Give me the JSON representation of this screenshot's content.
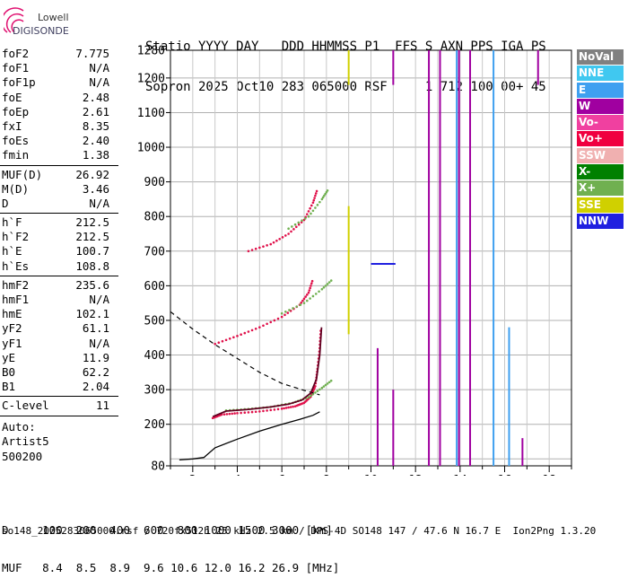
{
  "logo": {
    "line1": "Lowell",
    "line2": "DIGISONDE"
  },
  "header": {
    "line1": "Statio YYYY DAY   DDD HHMMSS P1  FFS S AXN PPS IGA PS",
    "line2": "Sopron 2025 Oct10 283 065000 RSF     1 712 100 00+ 45"
  },
  "params": {
    "group1": [
      {
        "k": "foF2",
        "v": "7.775"
      },
      {
        "k": "foF1",
        "v": "N/A"
      },
      {
        "k": "foF1p",
        "v": "N/A"
      },
      {
        "k": "foE",
        "v": "2.48"
      },
      {
        "k": "foEp",
        "v": "2.61"
      },
      {
        "k": "fxI",
        "v": "8.35"
      },
      {
        "k": "foEs",
        "v": "2.40"
      },
      {
        "k": "fmin",
        "v": "1.38"
      }
    ],
    "group2": [
      {
        "k": "MUF(D)",
        "v": "26.92"
      },
      {
        "k": "M(D)",
        "v": "3.46"
      },
      {
        "k": "D",
        "v": "N/A"
      }
    ],
    "group3": [
      {
        "k": "h`F",
        "v": "212.5"
      },
      {
        "k": "h`F2",
        "v": "212.5"
      },
      {
        "k": "h`E",
        "v": "100.7"
      },
      {
        "k": "h`Es",
        "v": "108.8"
      }
    ],
    "group4": [
      {
        "k": "hmF2",
        "v": "235.6"
      },
      {
        "k": "hmF1",
        "v": "N/A"
      },
      {
        "k": "hmE",
        "v": "102.1"
      },
      {
        "k": "yF2",
        "v": "61.1"
      },
      {
        "k": "yF1",
        "v": "N/A"
      },
      {
        "k": "yE",
        "v": "11.9"
      },
      {
        "k": "B0",
        "v": "62.2"
      },
      {
        "k": "B1",
        "v": "2.04"
      }
    ],
    "group5": [
      {
        "k": "C-level",
        "v": "11"
      }
    ],
    "auto": [
      "Auto:",
      "Artist5",
      "500200"
    ]
  },
  "legend": [
    {
      "label": "NoVal",
      "color": "#808080"
    },
    {
      "label": "NNE",
      "color": "#40c8f0"
    },
    {
      "label": "E",
      "color": "#3fa0f0"
    },
    {
      "label": "W",
      "color": "#a000a0"
    },
    {
      "label": "Vo-",
      "color": "#f040a0"
    },
    {
      "label": "Vo+",
      "color": "#f00040"
    },
    {
      "label": "SSW",
      "color": "#f0b0b0"
    },
    {
      "label": "X-",
      "color": "#008000"
    },
    {
      "label": "X+",
      "color": "#70b050"
    },
    {
      "label": "SSE",
      "color": "#d0d000"
    },
    {
      "label": "NNW",
      "color": "#2020e0"
    }
  ],
  "chart_data": {
    "type": "scatter",
    "xlim": [
      1,
      19
    ],
    "ylim": [
      80,
      1280
    ],
    "xticks": [
      2,
      4,
      6,
      8,
      10,
      12,
      14,
      16,
      18
    ],
    "yticks": [
      80,
      200,
      300,
      400,
      500,
      600,
      700,
      800,
      900,
      1000,
      1100,
      1200,
      1280
    ],
    "grid": true,
    "series": [
      {
        "name": "Vo+",
        "color": "#e0104a",
        "points": [
          [
            2.9,
            218
          ],
          [
            3.3,
            228
          ],
          [
            4.0,
            232
          ],
          [
            5.0,
            237
          ],
          [
            6.0,
            245
          ],
          [
            6.6,
            252
          ],
          [
            7.0,
            262
          ],
          [
            7.3,
            280
          ],
          [
            7.5,
            310
          ],
          [
            7.6,
            360
          ],
          [
            7.7,
            420
          ],
          [
            7.75,
            480
          ]
        ]
      },
      {
        "name": "X+",
        "color": "#70b050",
        "points": [
          [
            3.5,
            240
          ],
          [
            4.5,
            244
          ],
          [
            5.5,
            250
          ],
          [
            6.5,
            262
          ],
          [
            7.2,
            278
          ],
          [
            7.8,
            305
          ],
          [
            8.3,
            330
          ]
        ]
      },
      {
        "name": "Vo+",
        "color": "#e0104a",
        "points": [
          [
            3.0,
            432
          ],
          [
            4.0,
            455
          ],
          [
            5.0,
            480
          ],
          [
            6.0,
            510
          ],
          [
            6.8,
            545
          ],
          [
            7.2,
            580
          ],
          [
            7.4,
            620
          ]
        ]
      },
      {
        "name": "X+",
        "color": "#70b050",
        "points": [
          [
            6.0,
            520
          ],
          [
            7.0,
            550
          ],
          [
            7.8,
            590
          ],
          [
            8.3,
            620
          ]
        ]
      },
      {
        "name": "Vo+",
        "color": "#e0104a",
        "points": [
          [
            4.5,
            700
          ],
          [
            5.5,
            720
          ],
          [
            6.3,
            750
          ],
          [
            7.0,
            790
          ],
          [
            7.4,
            840
          ],
          [
            7.6,
            880
          ]
        ]
      },
      {
        "name": "X+",
        "color": "#70b050",
        "points": [
          [
            6.3,
            765
          ],
          [
            7.2,
            800
          ],
          [
            7.8,
            850
          ],
          [
            8.1,
            880
          ]
        ]
      }
    ],
    "profile": {
      "name": "profile",
      "points": [
        [
          1.4,
          97
        ],
        [
          2.0,
          100
        ],
        [
          2.5,
          104
        ],
        [
          3.0,
          132
        ],
        [
          4.0,
          157
        ],
        [
          5.0,
          180
        ],
        [
          6.0,
          200
        ],
        [
          6.8,
          214
        ],
        [
          7.4,
          226
        ],
        [
          7.7,
          236
        ]
      ]
    },
    "trace": {
      "name": "trace",
      "points": [
        [
          2.9,
          222
        ],
        [
          3.5,
          238
        ],
        [
          4.5,
          243
        ],
        [
          5.5,
          250
        ],
        [
          6.3,
          258
        ],
        [
          6.9,
          270
        ],
        [
          7.3,
          290
        ],
        [
          7.55,
          330
        ],
        [
          7.7,
          400
        ],
        [
          7.78,
          480
        ]
      ]
    },
    "model": {
      "name": "model",
      "points": [
        [
          1.0,
          525
        ],
        [
          2.0,
          475
        ],
        [
          3.0,
          430
        ],
        [
          4.0,
          390
        ],
        [
          5.0,
          350
        ],
        [
          6.0,
          318
        ],
        [
          7.0,
          298
        ],
        [
          7.7,
          285
        ]
      ]
    },
    "verticals": [
      {
        "x": 9.0,
        "y1": 460,
        "y2": 830,
        "color": "#d0d000"
      },
      {
        "x": 9.0,
        "y1": 1180,
        "y2": 1280,
        "color": "#d0d000"
      },
      {
        "x": 10.3,
        "y1": 80,
        "y2": 420,
        "color": "#a000a0"
      },
      {
        "x": 11.0,
        "y1": 80,
        "y2": 300,
        "color": "#a000a0"
      },
      {
        "x": 11.0,
        "y1": 1180,
        "y2": 1280,
        "color": "#a000a0"
      },
      {
        "x": 12.6,
        "y1": 80,
        "y2": 1280,
        "color": "#a000a0"
      },
      {
        "x": 13.1,
        "y1": 80,
        "y2": 1280,
        "color": "#a000a0"
      },
      {
        "x": 13.85,
        "y1": 80,
        "y2": 1280,
        "color": "#3fa0f0"
      },
      {
        "x": 13.95,
        "y1": 80,
        "y2": 1280,
        "color": "#a000a0"
      },
      {
        "x": 14.45,
        "y1": 80,
        "y2": 1280,
        "color": "#a000a0"
      },
      {
        "x": 15.5,
        "y1": 80,
        "y2": 1280,
        "color": "#3fa0f0"
      },
      {
        "x": 16.2,
        "y1": 80,
        "y2": 480,
        "color": "#3fa0f0"
      },
      {
        "x": 16.8,
        "y1": 80,
        "y2": 160,
        "color": "#a000a0"
      },
      {
        "x": 17.5,
        "y1": 1180,
        "y2": 1280,
        "color": "#a000a0"
      }
    ],
    "segments": [
      {
        "x1": 10.0,
        "x2": 11.1,
        "y": 663,
        "color": "#2020e0"
      }
    ]
  },
  "bottom": {
    "d_row": "D     100  200  400  600  800 1000 1500 3000 [km]",
    "muf_row": "MUF   8.4  8.5  8.9  9.6 10.6 12.0 16.2 26.9 [MHz]"
  },
  "footer": "so148_2025283065000.rsf / 720fx512h 25 kHz 2.5 km / DPS-4D SO148 147 / 47.6 N 16.7 E  Ion2Png 1.3.20"
}
